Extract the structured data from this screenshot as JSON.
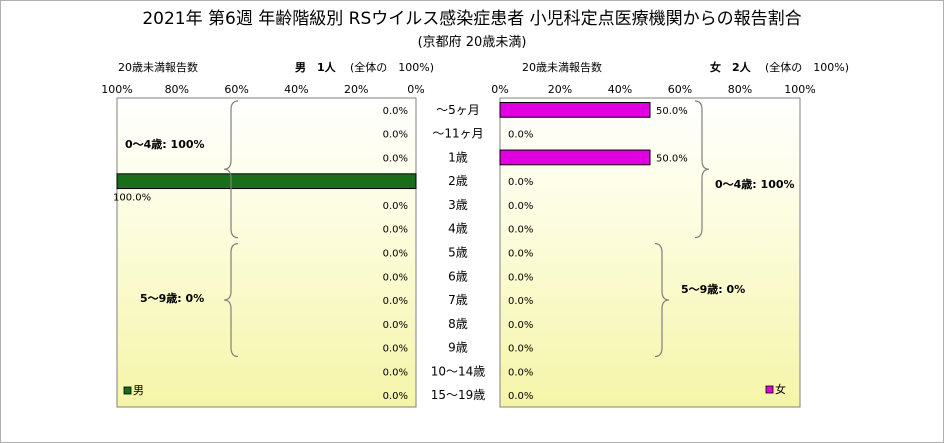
{
  "title": "2021年 第6週 年齢階級別 RSウイルス感染症患者 小児科定点医療機関からの報告割合",
  "subtitle": "(京都府 20歳未満)",
  "male": {
    "count_label": "20歳未満報告数",
    "sex_count": "男　1人",
    "share_label": "(全体の　100%)",
    "legend": "男",
    "color": "#1a6e1a",
    "brace_upper": "0～4歳: 100%",
    "brace_lower": "5～9歳: 0%"
  },
  "female": {
    "count_label": "20歳未満報告数",
    "sex_count": "女　2人",
    "share_label": "(全体の　100%)",
    "legend": "女",
    "color": "#e000e0",
    "brace_upper": "0～4歳: 100%",
    "brace_lower": "5～9歳: 0%"
  },
  "chart_data": {
    "type": "bar",
    "orientation": "horizontal-population-pyramid",
    "categories": [
      "～5ヶ月",
      "～11ヶ月",
      "1歳",
      "2歳",
      "3歳",
      "4歳",
      "5歳",
      "6歳",
      "7歳",
      "8歳",
      "9歳",
      "10～14歳",
      "15～19歳"
    ],
    "series": [
      {
        "name": "男",
        "values": [
          0,
          0,
          0,
          100,
          0,
          0,
          0,
          0,
          0,
          0,
          0,
          0,
          0
        ],
        "labels": [
          "0.0%",
          "0.0%",
          "0.0%",
          "100.0%",
          "0.0%",
          "0.0%",
          "0.0%",
          "0.0%",
          "0.0%",
          "0.0%",
          "0.0%",
          "0.0%",
          "0.0%"
        ]
      },
      {
        "name": "女",
        "values": [
          50,
          0,
          50,
          0,
          0,
          0,
          0,
          0,
          0,
          0,
          0,
          0,
          0
        ],
        "labels": [
          "50.0%",
          "0.0%",
          "50.0%",
          "0.0%",
          "0.0%",
          "0.0%",
          "0.0%",
          "0.0%",
          "0.0%",
          "0.0%",
          "0.0%",
          "0.0%",
          "0.0%"
        ]
      }
    ],
    "xlim": [
      0,
      100
    ],
    "male_ticks": [
      "100%",
      "80%",
      "60%",
      "40%",
      "20%",
      "0%"
    ],
    "female_ticks": [
      "0%",
      "20%",
      "40%",
      "60%",
      "80%",
      "100%"
    ]
  }
}
